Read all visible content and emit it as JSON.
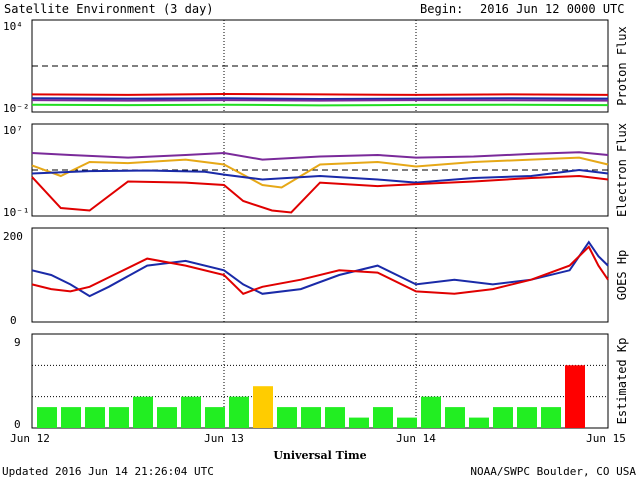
{
  "header": {
    "title": "Satellite Environment (3 day)",
    "begin_label": "Begin:",
    "begin_value": "2016 Jun 12 0000 UTC"
  },
  "footer": {
    "updated": "Updated 2016 Jun 14 21:26:04 UTC",
    "credit": "NOAA/SWPC Boulder, CO USA"
  },
  "chart_data": [
    {
      "type": "line",
      "ylabel": "Proton Flux",
      "yscale": "log",
      "ylim": [
        0.01,
        10000
      ],
      "y_tick_labels": [
        "10⁴",
        "10⁻²"
      ],
      "threshold": 10,
      "series": [
        {
          "color": "#e00000",
          "x": [
            0,
            0.5,
            1,
            1.5,
            2,
            2.5,
            3
          ],
          "y": [
            0.14,
            0.13,
            0.15,
            0.14,
            0.13,
            0.14,
            0.13
          ]
        },
        {
          "color": "#1a2aa8",
          "x": [
            0,
            0.5,
            1,
            1.5,
            2,
            2.5,
            3
          ],
          "y": [
            0.08,
            0.075,
            0.08,
            0.07,
            0.075,
            0.08,
            0.075
          ]
        },
        {
          "color": "#7a2a9a",
          "x": [
            0,
            0.5,
            1,
            1.5,
            2,
            2.5,
            3
          ],
          "y": [
            0.06,
            0.055,
            0.06,
            0.055,
            0.06,
            0.058,
            0.055
          ]
        },
        {
          "color": "#22dd22",
          "x": [
            0,
            0.5,
            1,
            1.5,
            2,
            2.5,
            3
          ],
          "y": [
            0.03,
            0.028,
            0.03,
            0.027,
            0.029,
            0.03,
            0.028
          ]
        }
      ]
    },
    {
      "type": "line",
      "ylabel": "Electron Flux",
      "yscale": "log",
      "ylim": [
        0.1,
        10000000
      ],
      "y_tick_labels": [
        "10⁷",
        "10⁻¹"
      ],
      "threshold": 1000,
      "series": [
        {
          "color": "#7a2a9a",
          "x": [
            0,
            0.2,
            0.5,
            0.8,
            1.0,
            1.2,
            1.5,
            1.8,
            2.0,
            2.3,
            2.6,
            2.85,
            3.0
          ],
          "y": [
            30000,
            20000,
            12000,
            20000,
            30000,
            8000,
            15000,
            20000,
            12000,
            15000,
            25000,
            35000,
            20000
          ]
        },
        {
          "color": "#e6a817",
          "x": [
            0,
            0.15,
            0.3,
            0.5,
            0.8,
            1.0,
            1.2,
            1.3,
            1.5,
            1.8,
            2.0,
            2.3,
            2.6,
            2.85,
            3.0
          ],
          "y": [
            2500,
            300,
            5000,
            4000,
            8000,
            3000,
            50,
            30,
            3000,
            5000,
            2000,
            5000,
            8000,
            12000,
            3000
          ]
        },
        {
          "color": "#1a2aa8",
          "x": [
            0,
            0.3,
            0.6,
            0.9,
            1.0,
            1.2,
            1.5,
            1.8,
            2.0,
            2.3,
            2.6,
            2.85,
            3.0
          ],
          "y": [
            500,
            800,
            900,
            700,
            400,
            150,
            300,
            150,
            80,
            200,
            300,
            1000,
            500
          ]
        },
        {
          "color": "#e00000",
          "x": [
            0,
            0.15,
            0.3,
            0.5,
            0.8,
            1.0,
            1.1,
            1.25,
            1.35,
            1.5,
            1.8,
            2.0,
            2.3,
            2.6,
            2.85,
            3.0
          ],
          "y": [
            250,
            0.5,
            0.3,
            100,
            80,
            50,
            2,
            0.3,
            0.2,
            80,
            40,
            60,
            100,
            200,
            300,
            150
          ]
        }
      ]
    },
    {
      "type": "line",
      "ylabel": "GOES Hp",
      "ylim": [
        0,
        200
      ],
      "y_tick_labels": [
        "200",
        "0"
      ],
      "series": [
        {
          "color": "#1a2aa8",
          "x": [
            0,
            0.1,
            0.2,
            0.3,
            0.4,
            0.6,
            0.8,
            1.0,
            1.1,
            1.2,
            1.4,
            1.6,
            1.8,
            2.0,
            2.2,
            2.4,
            2.6,
            2.8,
            2.9,
            2.95,
            3.0
          ],
          "y": [
            110,
            100,
            80,
            55,
            75,
            120,
            130,
            110,
            80,
            60,
            70,
            100,
            120,
            80,
            90,
            80,
            90,
            110,
            170,
            140,
            120
          ]
        },
        {
          "color": "#e00000",
          "x": [
            0,
            0.1,
            0.2,
            0.3,
            0.4,
            0.6,
            0.8,
            1.0,
            1.1,
            1.2,
            1.4,
            1.6,
            1.8,
            2.0,
            2.2,
            2.4,
            2.6,
            2.8,
            2.9,
            2.95,
            3.0
          ],
          "y": [
            80,
            70,
            65,
            75,
            95,
            135,
            120,
            100,
            60,
            75,
            90,
            110,
            105,
            65,
            60,
            70,
            90,
            120,
            160,
            120,
            90
          ]
        }
      ]
    },
    {
      "type": "bar",
      "ylabel": "Estimated Kp",
      "ylim": [
        0,
        9
      ],
      "y_tick_labels": [
        "9",
        "0"
      ],
      "values": [
        2,
        2,
        2,
        2,
        3,
        2,
        3,
        2,
        3,
        4,
        2,
        2,
        2,
        1,
        2,
        1,
        3,
        2,
        1,
        2,
        2,
        2,
        6
      ],
      "colors": [
        "#22ee22",
        "#22ee22",
        "#22ee22",
        "#22ee22",
        "#22ee22",
        "#22ee22",
        "#22ee22",
        "#22ee22",
        "#22ee22",
        "#ffcc00",
        "#22ee22",
        "#22ee22",
        "#22ee22",
        "#22ee22",
        "#22ee22",
        "#22ee22",
        "#22ee22",
        "#22ee22",
        "#22ee22",
        "#22ee22",
        "#22ee22",
        "#22ee22",
        "#ff0000"
      ],
      "x_tick_labels": [
        "Jun 12",
        "Jun 13",
        "Jun 14",
        "Jun 15"
      ],
      "xlabel": "Universal Time"
    }
  ]
}
